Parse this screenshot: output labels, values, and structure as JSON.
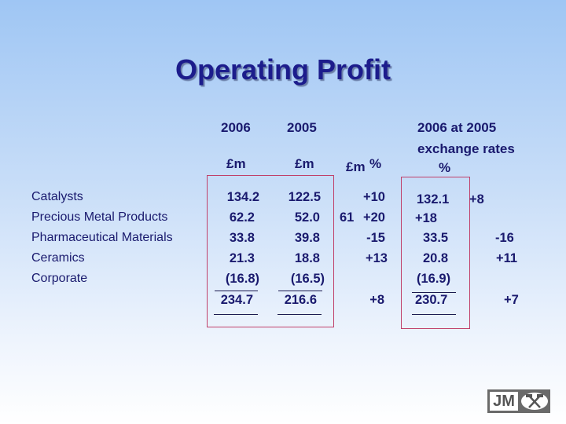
{
  "title": "Operating Profit",
  "headers": {
    "y2006": "2006",
    "y2005": "2005",
    "unit2006": "£m",
    "unit2005": "£m",
    "change_unit_a": "£m",
    "change_unit_b": "%",
    "fx_line1": "2006 at 2005",
    "fx_line2": "exchange rates",
    "fx_unit": "%"
  },
  "rows": [
    {
      "label": "Catalysts",
      "v2006": "134.2",
      "v2005": "122.5",
      "change": "+10",
      "fx": "132.1",
      "fx_change": "+8"
    },
    {
      "label": "Precious Metal Products",
      "v2006": "62.2",
      "v2005": "52.0",
      "change_overlap": "61",
      "change": "+20",
      "fx": "+18",
      "fx_change": ""
    },
    {
      "label": "Pharmaceutical Materials",
      "v2006": "33.8",
      "v2005": "39.8",
      "change": "-15",
      "fx": "33.5",
      "fx_change": "-16"
    },
    {
      "label": "Ceramics",
      "v2006": "21.3",
      "v2005": "18.8",
      "change": "+13",
      "fx": "20.8",
      "fx_change": "+11"
    },
    {
      "label": "Corporate",
      "v2006": "(16.8)",
      "v2005": "(16.5)",
      "change": "",
      "fx": "(16.9)",
      "fx_change": ""
    }
  ],
  "total": {
    "v2006": "234.7",
    "v2005": "216.6",
    "change": "+8",
    "fx": "230.7",
    "fx_change": "+7"
  },
  "logo": {
    "text": "JM",
    "icon": "crossed-hammers-icon"
  },
  "colors": {
    "text": "#1a1a6e",
    "box_border": "#c0406a"
  }
}
